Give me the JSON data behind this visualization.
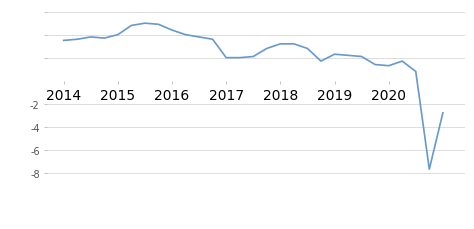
{
  "x": [
    2014.0,
    2014.25,
    2014.5,
    2014.75,
    2015.0,
    2015.25,
    2015.5,
    2015.75,
    2016.0,
    2016.25,
    2016.5,
    2016.75,
    2017.0,
    2017.25,
    2017.5,
    2017.75,
    2018.0,
    2018.25,
    2018.5,
    2018.75,
    2019.0,
    2019.25,
    2019.5,
    2019.75,
    2020.0,
    2020.25,
    2020.5,
    2020.75,
    2021.0
  ],
  "y": [
    3.5,
    3.6,
    3.8,
    3.7,
    4.0,
    4.8,
    5.0,
    4.9,
    4.4,
    4.0,
    3.8,
    3.6,
    2.0,
    2.0,
    2.1,
    2.8,
    3.2,
    3.2,
    2.8,
    1.7,
    2.3,
    2.2,
    2.1,
    1.4,
    1.3,
    1.7,
    0.8,
    -7.7,
    -2.8
  ],
  "line_color": "#6699cc",
  "line_width": 1.2,
  "ylim": [
    -8.5,
    6.5
  ],
  "yticks": [
    -8,
    -6,
    -4,
    -2,
    2,
    4,
    6
  ],
  "ytick_labels": [
    "-8",
    "-6",
    "-4",
    "-2",
    "",
    "",
    ""
  ],
  "xtick_positions": [
    2014,
    2015,
    2016,
    2017,
    2018,
    2019,
    2020
  ],
  "xtick_labels": [
    "2014",
    "2015",
    "2016",
    "2017",
    "2018",
    "2019",
    "2020"
  ],
  "grid_color": "#d0d0d0",
  "background_color": "#ffffff",
  "xlim_left": 2013.7,
  "xlim_right": 2021.4
}
